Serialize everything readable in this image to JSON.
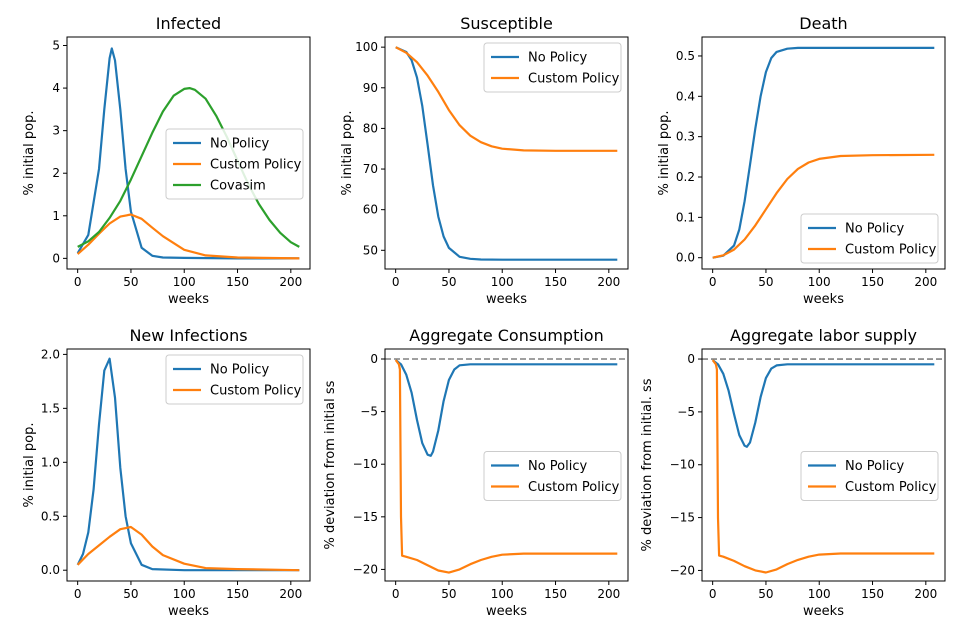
{
  "colors": {
    "no_policy": "#1f77b4",
    "custom_policy": "#ff7f0e",
    "covasim": "#2ca02c",
    "reference": "#808080"
  },
  "chart_data": [
    {
      "type": "line",
      "title": "Infected",
      "xlabel": "weeks",
      "ylabel": "% initial pop.",
      "xlim": [
        -10,
        218
      ],
      "ylim": [
        -0.25,
        5.2
      ],
      "xticks": [
        0,
        50,
        100,
        150,
        200
      ],
      "yticks": [
        0,
        1,
        2,
        3,
        4,
        5
      ],
      "ytick_labels": [
        "0",
        "1",
        "2",
        "3",
        "4",
        "5"
      ],
      "legend": "right",
      "series": [
        {
          "name": "No Policy",
          "color": "#1f77b4",
          "x": [
            0,
            10,
            20,
            25,
            30,
            32,
            35,
            40,
            45,
            50,
            60,
            70,
            80,
            100,
            150,
            208
          ],
          "y": [
            0.12,
            0.55,
            2.1,
            3.5,
            4.7,
            4.93,
            4.65,
            3.5,
            2.1,
            1.1,
            0.25,
            0.06,
            0.02,
            0.01,
            0.0,
            0.0
          ]
        },
        {
          "name": "Custom Policy",
          "color": "#ff7f0e",
          "x": [
            0,
            10,
            20,
            30,
            40,
            50,
            60,
            70,
            80,
            100,
            120,
            150,
            208
          ],
          "y": [
            0.1,
            0.32,
            0.58,
            0.82,
            0.98,
            1.03,
            0.93,
            0.72,
            0.52,
            0.2,
            0.07,
            0.02,
            0.0
          ]
        },
        {
          "name": "Covasim",
          "color": "#2ca02c",
          "x": [
            0,
            10,
            20,
            30,
            40,
            50,
            60,
            70,
            80,
            90,
            100,
            105,
            110,
            120,
            130,
            140,
            150,
            160,
            170,
            180,
            190,
            200,
            208
          ],
          "y": [
            0.27,
            0.4,
            0.62,
            0.95,
            1.35,
            1.85,
            2.4,
            2.95,
            3.45,
            3.82,
            3.98,
            4.0,
            3.96,
            3.75,
            3.35,
            2.85,
            2.3,
            1.75,
            1.28,
            0.9,
            0.6,
            0.38,
            0.27
          ]
        }
      ]
    },
    {
      "type": "line",
      "title": "Susceptible",
      "xlabel": "weeks",
      "ylabel": "% initial pop.",
      "xlim": [
        -10,
        218
      ],
      "ylim": [
        45.4,
        102.5
      ],
      "xticks": [
        0,
        50,
        100,
        150,
        200
      ],
      "yticks": [
        50,
        60,
        70,
        80,
        90,
        100
      ],
      "ytick_labels": [
        "50",
        "60",
        "70",
        "80",
        "90",
        "100"
      ],
      "legend": "top-right",
      "series": [
        {
          "name": "No Policy",
          "color": "#1f77b4",
          "x": [
            0,
            10,
            15,
            20,
            25,
            30,
            35,
            40,
            45,
            50,
            60,
            70,
            80,
            100,
            150,
            208
          ],
          "y": [
            100,
            98.8,
            96.8,
            92.5,
            85.5,
            76,
            66,
            58.3,
            53.4,
            50.6,
            48.4,
            47.9,
            47.75,
            47.7,
            47.7,
            47.7
          ]
        },
        {
          "name": "Custom Policy",
          "color": "#ff7f0e",
          "x": [
            0,
            10,
            20,
            30,
            40,
            50,
            60,
            70,
            80,
            90,
            100,
            120,
            150,
            208
          ],
          "y": [
            100,
            98.6,
            96.3,
            93,
            89,
            84.5,
            80.8,
            78.2,
            76.6,
            75.6,
            75,
            74.6,
            74.5,
            74.5
          ]
        }
      ]
    },
    {
      "type": "line",
      "title": "Death",
      "xlabel": "weeks",
      "ylabel": "% initial pop.",
      "xlim": [
        -10,
        218
      ],
      "ylim": [
        -0.028,
        0.547
      ],
      "xticks": [
        0,
        50,
        100,
        150,
        200
      ],
      "yticks": [
        0.0,
        0.1,
        0.2,
        0.3,
        0.4,
        0.5
      ],
      "ytick_labels": [
        "0.0",
        "0.1",
        "0.2",
        "0.3",
        "0.4",
        "0.5"
      ],
      "legend": "bottom-right",
      "series": [
        {
          "name": "No Policy",
          "color": "#1f77b4",
          "x": [
            0,
            10,
            20,
            25,
            30,
            35,
            40,
            45,
            50,
            55,
            60,
            70,
            80,
            100,
            150,
            208
          ],
          "y": [
            0,
            0.005,
            0.03,
            0.07,
            0.14,
            0.23,
            0.32,
            0.4,
            0.46,
            0.495,
            0.51,
            0.518,
            0.52,
            0.52,
            0.52,
            0.52
          ]
        },
        {
          "name": "Custom Policy",
          "color": "#ff7f0e",
          "x": [
            0,
            10,
            20,
            30,
            40,
            50,
            60,
            70,
            80,
            90,
            100,
            120,
            150,
            208
          ],
          "y": [
            0,
            0.006,
            0.02,
            0.045,
            0.08,
            0.12,
            0.16,
            0.195,
            0.22,
            0.236,
            0.245,
            0.252,
            0.254,
            0.255
          ]
        }
      ]
    },
    {
      "type": "line",
      "title": "New Infections",
      "xlabel": "weeks",
      "ylabel": "% initial pop.",
      "xlim": [
        -10,
        218
      ],
      "ylim": [
        -0.1,
        2.05
      ],
      "xticks": [
        0,
        50,
        100,
        150,
        200
      ],
      "yticks": [
        0.0,
        0.5,
        1.0,
        1.5,
        2.0
      ],
      "ytick_labels": [
        "0.0",
        "0.5",
        "1.0",
        "1.5",
        "2.0"
      ],
      "legend": "top-right",
      "series": [
        {
          "name": "No Policy",
          "color": "#1f77b4",
          "x": [
            0,
            5,
            10,
            15,
            20,
            25,
            30,
            35,
            40,
            45,
            50,
            60,
            70,
            100,
            208
          ],
          "y": [
            0.05,
            0.15,
            0.35,
            0.75,
            1.35,
            1.85,
            1.96,
            1.6,
            0.95,
            0.5,
            0.25,
            0.05,
            0.01,
            0.0,
            0.0
          ]
        },
        {
          "name": "Custom Policy",
          "color": "#ff7f0e",
          "x": [
            0,
            10,
            20,
            30,
            40,
            50,
            60,
            70,
            80,
            100,
            120,
            150,
            208
          ],
          "y": [
            0.05,
            0.15,
            0.23,
            0.31,
            0.38,
            0.4,
            0.33,
            0.22,
            0.14,
            0.06,
            0.02,
            0.01,
            0.0
          ]
        }
      ]
    },
    {
      "type": "line",
      "title": "Aggregate Consumption",
      "xlabel": "weeks",
      "ylabel": "% deviation from initial ss",
      "xlim": [
        -10,
        218
      ],
      "ylim": [
        -21.1,
        0.95
      ],
      "xticks": [
        0,
        50,
        100,
        150,
        200
      ],
      "yticks": [
        0,
        -5,
        -10,
        -15,
        -20
      ],
      "ytick_labels": [
        "0",
        "−5",
        "−10",
        "−15",
        "−20"
      ],
      "legend": "center-right",
      "reference_line": 0,
      "series": [
        {
          "name": "No Policy",
          "color": "#1f77b4",
          "x": [
            0,
            5,
            10,
            15,
            20,
            25,
            30,
            33,
            35,
            40,
            45,
            50,
            55,
            60,
            70,
            80,
            100,
            150,
            208
          ],
          "y": [
            -0.1,
            -0.5,
            -1.5,
            -3.2,
            -5.8,
            -8,
            -9.1,
            -9.2,
            -8.8,
            -6.8,
            -4,
            -2,
            -1,
            -0.6,
            -0.5,
            -0.5,
            -0.5,
            -0.5,
            -0.5
          ]
        },
        {
          "name": "Custom Policy",
          "color": "#ff7f0e",
          "x": [
            0,
            3,
            4,
            5,
            6,
            10,
            20,
            30,
            40,
            50,
            60,
            70,
            80,
            90,
            100,
            120,
            150,
            208
          ],
          "y": [
            -0.1,
            -0.5,
            -1,
            -15,
            -18.7,
            -18.8,
            -19.1,
            -19.6,
            -20.1,
            -20.3,
            -20,
            -19.5,
            -19.1,
            -18.8,
            -18.6,
            -18.5,
            -18.5,
            -18.5
          ]
        }
      ]
    },
    {
      "type": "line",
      "title": "Aggregate labor supply",
      "xlabel": "weeks",
      "ylabel": "% deviation from initial. ss",
      "xlim": [
        -10,
        218
      ],
      "ylim": [
        -21.0,
        0.95
      ],
      "xticks": [
        0,
        50,
        100,
        150,
        200
      ],
      "yticks": [
        0,
        -5,
        -10,
        -15,
        -20
      ],
      "ytick_labels": [
        "0",
        "−5",
        "−10",
        "−15",
        "−20"
      ],
      "legend": "center-right",
      "reference_line": 0,
      "series": [
        {
          "name": "No Policy",
          "color": "#1f77b4",
          "x": [
            0,
            5,
            10,
            15,
            20,
            25,
            30,
            32,
            35,
            40,
            45,
            50,
            55,
            60,
            70,
            80,
            100,
            150,
            208
          ],
          "y": [
            -0.1,
            -0.5,
            -1.4,
            -3,
            -5.2,
            -7.2,
            -8.2,
            -8.3,
            -7.9,
            -6,
            -3.6,
            -1.8,
            -0.9,
            -0.6,
            -0.5,
            -0.5,
            -0.5,
            -0.5,
            -0.5
          ]
        },
        {
          "name": "Custom Policy",
          "color": "#ff7f0e",
          "x": [
            0,
            3,
            4,
            5,
            6,
            10,
            20,
            30,
            40,
            50,
            60,
            70,
            80,
            90,
            100,
            120,
            150,
            208
          ],
          "y": [
            -0.1,
            -0.5,
            -1,
            -15,
            -18.6,
            -18.7,
            -19.1,
            -19.6,
            -20,
            -20.2,
            -19.9,
            -19.4,
            -19,
            -18.7,
            -18.5,
            -18.4,
            -18.4,
            -18.4
          ]
        }
      ]
    }
  ]
}
